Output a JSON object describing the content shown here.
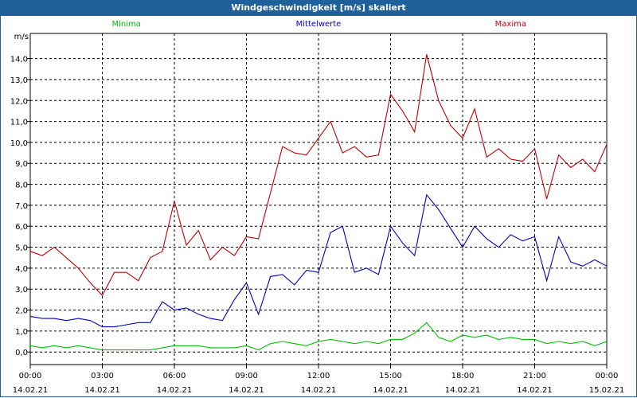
{
  "window": {
    "title": "Windgeschwindigkeit [m/s] skaliert"
  },
  "chart_data": {
    "type": "line",
    "title": "Windgeschwindigkeit [m/s] skaliert",
    "ylabel": "m/s",
    "ylim": [
      -0.6,
      15.2
    ],
    "xlim": [
      0,
      24
    ],
    "grid": true,
    "legend_placement": "top",
    "y_ticks": [
      "0,0",
      "1,0",
      "2,0",
      "3,0",
      "4,0",
      "5,0",
      "6,0",
      "7,0",
      "8,0",
      "9,0",
      "10,0",
      "11,0",
      "12,0",
      "13,0",
      "14,0"
    ],
    "x_ticks": [
      {
        "time": "00:00",
        "date": "14.02.21"
      },
      {
        "time": "03:00",
        "date": "14.02.21"
      },
      {
        "time": "06:00",
        "date": "14.02.21"
      },
      {
        "time": "09:00",
        "date": "14.02.21"
      },
      {
        "time": "12:00",
        "date": "14.02.21"
      },
      {
        "time": "15:00",
        "date": "14.02.21"
      },
      {
        "time": "18:00",
        "date": "14.02.21"
      },
      {
        "time": "21:00",
        "date": "14.02.21"
      },
      {
        "time": "00:00",
        "date": "15.02.21"
      }
    ],
    "series": [
      {
        "name": "Minima",
        "color": "#00c000",
        "x": [
          0,
          0.5,
          1,
          1.5,
          2,
          2.5,
          3,
          3.5,
          4,
          4.5,
          5,
          5.5,
          6,
          6.5,
          7,
          7.5,
          8,
          8.5,
          9,
          9.5,
          10,
          10.5,
          11,
          11.5,
          12,
          12.5,
          13,
          13.5,
          14,
          14.5,
          15,
          15.5,
          16,
          16.5,
          17,
          17.5,
          18,
          18.5,
          19,
          19.5,
          20,
          20.5,
          21,
          21.5,
          22,
          22.5,
          23,
          23.5,
          24
        ],
        "values": [
          0.3,
          0.2,
          0.3,
          0.2,
          0.3,
          0.2,
          0.1,
          0.1,
          0.1,
          0.1,
          0.1,
          0.2,
          0.3,
          0.3,
          0.3,
          0.2,
          0.2,
          0.2,
          0.3,
          0.1,
          0.4,
          0.5,
          0.4,
          0.3,
          0.5,
          0.6,
          0.5,
          0.4,
          0.5,
          0.4,
          0.6,
          0.6,
          0.9,
          1.4,
          0.7,
          0.5,
          0.8,
          0.7,
          0.8,
          0.6,
          0.7,
          0.6,
          0.6,
          0.4,
          0.5,
          0.4,
          0.5,
          0.3,
          0.5
        ]
      },
      {
        "name": "Mittelwerte",
        "color": "#0000c0",
        "x": [
          0,
          0.5,
          1,
          1.5,
          2,
          2.5,
          3,
          3.5,
          4,
          4.5,
          5,
          5.5,
          6,
          6.5,
          7,
          7.5,
          8,
          8.5,
          9,
          9.5,
          10,
          10.5,
          11,
          11.5,
          12,
          12.5,
          13,
          13.5,
          14,
          14.5,
          15,
          15.5,
          16,
          16.5,
          17,
          17.5,
          18,
          18.5,
          19,
          19.5,
          20,
          20.5,
          21,
          21.5,
          22,
          22.5,
          23,
          23.5,
          24
        ],
        "values": [
          1.7,
          1.6,
          1.6,
          1.5,
          1.6,
          1.5,
          1.2,
          1.2,
          1.3,
          1.4,
          1.4,
          2.4,
          2.0,
          2.1,
          1.8,
          1.6,
          1.5,
          2.5,
          3.3,
          1.8,
          3.6,
          3.7,
          3.2,
          3.9,
          3.8,
          5.7,
          6.0,
          3.8,
          4.0,
          3.7,
          6.0,
          5.2,
          4.6,
          7.5,
          6.8,
          5.9,
          5.0,
          6.0,
          5.4,
          5.0,
          5.6,
          5.3,
          5.5,
          3.4,
          5.5,
          4.3,
          4.1,
          4.4,
          4.1
        ]
      },
      {
        "name": "Maxima",
        "color": "#c00000",
        "x": [
          0,
          0.5,
          1,
          1.5,
          2,
          2.5,
          3,
          3.5,
          4,
          4.5,
          5,
          5.5,
          6,
          6.5,
          7,
          7.5,
          8,
          8.5,
          9,
          9.5,
          10,
          10.5,
          11,
          11.5,
          12,
          12.5,
          13,
          13.5,
          14,
          14.5,
          15,
          15.5,
          16,
          16.5,
          17,
          17.5,
          18,
          18.5,
          19,
          19.5,
          20,
          20.5,
          21,
          21.5,
          22,
          22.5,
          23,
          23.5,
          24
        ],
        "values": [
          4.8,
          4.6,
          5.0,
          4.5,
          4.0,
          3.3,
          2.7,
          3.8,
          3.8,
          3.4,
          4.5,
          4.8,
          7.2,
          5.1,
          5.8,
          4.4,
          5.0,
          4.6,
          5.5,
          5.4,
          7.6,
          9.8,
          9.5,
          9.4,
          10.2,
          11.0,
          9.5,
          9.8,
          9.3,
          9.4,
          12.3,
          11.5,
          10.5,
          14.2,
          12.0,
          10.8,
          10.2,
          11.6,
          9.3,
          9.7,
          9.2,
          9.1,
          9.7,
          7.3,
          9.4,
          8.8,
          9.2,
          8.6,
          9.9
        ]
      }
    ]
  }
}
